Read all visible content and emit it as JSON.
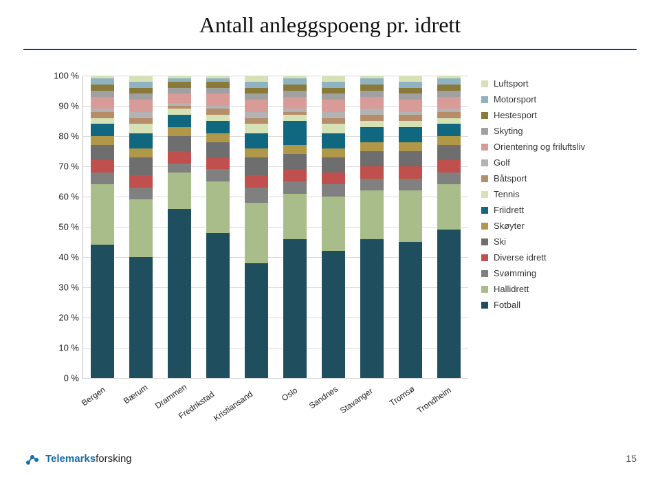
{
  "title": "Antall anleggspoeng pr. idrett",
  "page_number": "15",
  "brand": {
    "strong": "Telemarks",
    "rest": "forsking"
  },
  "chart": {
    "type": "stacked-bar-100",
    "background_color": "#ffffff",
    "grid_color": "#d9d9d9",
    "axis_color": "#bfbfbf",
    "bar_width": 0.62,
    "ylim": [
      0,
      100
    ],
    "ytick_step": 10,
    "ytick_suffix": " %",
    "title_fontsize": 32,
    "label_fontsize": 13,
    "xlabel_fontsize": 12,
    "categories": [
      "Bergen",
      "Bærum",
      "Drammen",
      "Fredrikstad",
      "Kristiansand",
      "Oslo",
      "Sandnes",
      "Stavanger",
      "Tromsø",
      "Trondheim"
    ],
    "series": [
      {
        "key": "fotball",
        "name": "Fotball",
        "color": "#1f4e5f"
      },
      {
        "key": "hallidrett",
        "name": "Hallidrett",
        "color": "#a8bd8a"
      },
      {
        "key": "svomming",
        "name": "Svømming",
        "color": "#808080"
      },
      {
        "key": "diverse",
        "name": "Diverse idrett",
        "color": "#c0504d"
      },
      {
        "key": "ski",
        "name": "Ski",
        "color": "#6e6e6e"
      },
      {
        "key": "skoyter",
        "name": "Skøyter",
        "color": "#b19848"
      },
      {
        "key": "friidrett",
        "name": "Friidrett",
        "color": "#0f6880"
      },
      {
        "key": "tennis",
        "name": "Tennis",
        "color": "#d6e2b5"
      },
      {
        "key": "batsport",
        "name": "Båtsport",
        "color": "#b68d68"
      },
      {
        "key": "golf",
        "name": "Golf",
        "color": "#b3b3b3"
      },
      {
        "key": "orientering",
        "name": "Orientering og friluftsliv",
        "color": "#d99b98"
      },
      {
        "key": "skyting",
        "name": "Skyting",
        "color": "#a0a0a0"
      },
      {
        "key": "hestesport",
        "name": "Hestesport",
        "color": "#8a7a3a"
      },
      {
        "key": "motorsport",
        "name": "Motorsport",
        "color": "#8fb3c0"
      },
      {
        "key": "luftsport",
        "name": "Luftsport",
        "color": "#d6e2b5"
      }
    ],
    "values": {
      "Bergen": [
        44,
        20,
        4,
        4,
        5,
        3,
        4,
        2,
        2,
        1,
        4,
        2,
        2,
        2,
        1
      ],
      "Bærum": [
        40,
        19,
        4,
        4,
        6,
        3,
        5,
        3,
        2,
        2,
        4,
        2,
        2,
        2,
        2
      ],
      "Drammen": [
        56,
        12,
        3,
        4,
        5,
        3,
        4,
        2,
        1,
        1,
        3,
        2,
        2,
        1,
        1
      ],
      "Fredrikstad": [
        48,
        17,
        4,
        4,
        5,
        3,
        4,
        2,
        2,
        1,
        4,
        2,
        2,
        1,
        1
      ],
      "Kristiansand": [
        38,
        20,
        5,
        4,
        6,
        3,
        5,
        3,
        2,
        2,
        4,
        2,
        2,
        2,
        2
      ],
      "Oslo": [
        46,
        15,
        4,
        4,
        5,
        3,
        8,
        2,
        1,
        1,
        4,
        2,
        2,
        2,
        1
      ],
      "Sandnes": [
        42,
        18,
        4,
        4,
        5,
        3,
        5,
        3,
        2,
        2,
        4,
        2,
        2,
        2,
        2
      ],
      "Stavanger": [
        46,
        16,
        4,
        4,
        5,
        3,
        5,
        2,
        2,
        2,
        4,
        2,
        2,
        2,
        1
      ],
      "Tromsø": [
        45,
        17,
        4,
        4,
        5,
        3,
        5,
        2,
        2,
        1,
        4,
        2,
        2,
        2,
        2
      ],
      "Trondheim": [
        49,
        15,
        4,
        4,
        5,
        3,
        4,
        2,
        2,
        1,
        4,
        2,
        2,
        2,
        1
      ]
    }
  }
}
